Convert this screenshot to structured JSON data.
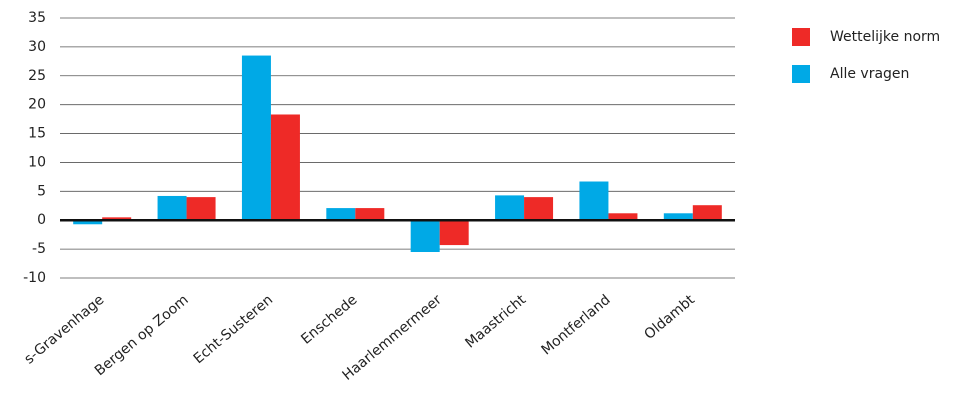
{
  "chart_data": {
    "type": "bar",
    "categories": [
      "s-Gravenhage",
      "Bergen op Zoom",
      "Echt-Susteren",
      "Enschede",
      "Haarlemmermeer",
      "Maastricht",
      "Montferland",
      "Oldambt"
    ],
    "series": [
      {
        "name": "Alle vragen",
        "color": "#00a9e6",
        "values": [
          -0.7,
          4.2,
          28.5,
          2.1,
          -5.5,
          4.3,
          6.7,
          1.2
        ]
      },
      {
        "name": "Wettelijke norm",
        "color": "#ee2a27",
        "values": [
          0.5,
          4.0,
          18.3,
          2.1,
          -4.3,
          4.0,
          1.2,
          2.6
        ]
      }
    ],
    "ylim": [
      -10,
      35
    ],
    "yticks": [
      -10,
      -5,
      0,
      5,
      10,
      15,
      20,
      25,
      30,
      35
    ],
    "grid": true,
    "legend": "right"
  }
}
